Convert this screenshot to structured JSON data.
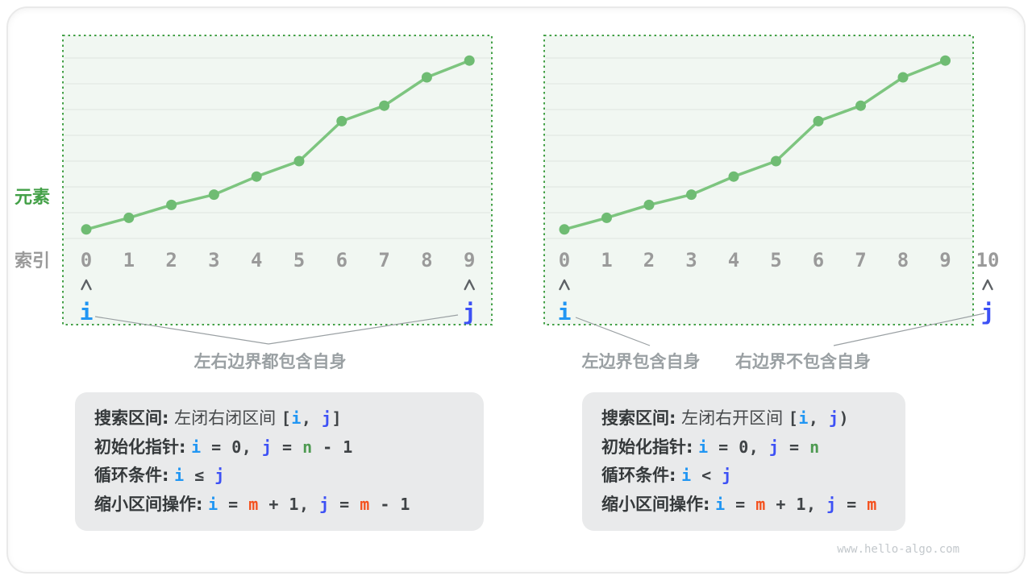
{
  "watermark": "www.hello-algo.com",
  "colors": {
    "border_green": "#43a047",
    "line_green": "#7dc57f",
    "dot_green": "#6fbc73",
    "box_bg": "#f1f7f2",
    "gridline": "#e0e5e0",
    "gray_label": "#9a9a9a",
    "annotation_gray": "#9aa0a3",
    "caret_gray": "#5d6165",
    "i_blue": "#2196f3",
    "j_indigo": "#3d51f5",
    "n_green": "#4e9a51",
    "m_orange": "#f4511e"
  },
  "axis": {
    "y_label": "元素",
    "x_label": "索引"
  },
  "panels": [
    {
      "name": "closed-interval",
      "index_labels": [
        "0",
        "1",
        "2",
        "3",
        "4",
        "5",
        "6",
        "7",
        "8",
        "9"
      ],
      "pointer_i": "i",
      "pointer_j": "j",
      "i_label_index": 0,
      "j_label_index": 9,
      "annotations": [
        {
          "text": "左右边界都包含自身"
        }
      ]
    },
    {
      "name": "left-closed-right-open-interval",
      "index_labels": [
        "0",
        "1",
        "2",
        "3",
        "4",
        "5",
        "6",
        "7",
        "8",
        "9",
        "10"
      ],
      "pointer_i": "i",
      "pointer_j": "j",
      "i_label_index": 0,
      "j_label_index": 10,
      "annotations": [
        {
          "text": "左边界包含自身"
        },
        {
          "text": "右边界不包含自身"
        }
      ]
    }
  ],
  "chart_data": [
    {
      "type": "line",
      "title": "",
      "x": [
        0,
        1,
        2,
        3,
        4,
        5,
        6,
        7,
        8,
        9
      ],
      "values": [
        0.35,
        0.8,
        1.3,
        1.7,
        2.4,
        3.0,
        4.55,
        5.15,
        6.25,
        6.9
      ],
      "xlabel": "索引",
      "ylabel": "元素",
      "grid": true,
      "legend": false,
      "note": "ascending sorted array, y in gridline units (no numeric axis labels shown)"
    },
    {
      "type": "line",
      "title": "",
      "x": [
        0,
        1,
        2,
        3,
        4,
        5,
        6,
        7,
        8,
        9
      ],
      "values": [
        0.35,
        0.8,
        1.3,
        1.7,
        2.4,
        3.0,
        4.55,
        5.15,
        6.25,
        6.9
      ],
      "xlabel": "",
      "ylabel": "",
      "grid": true,
      "legend": false,
      "note": "same ascending array; index 10 is outside the dotted interval box"
    }
  ],
  "info_boxes": [
    {
      "lines": [
        [
          {
            "t": "搜索区间:",
            "s": "label"
          },
          {
            "t": " 左闭右闭区间 ",
            "s": "plain"
          },
          {
            "t": "[",
            "s": "mono"
          },
          {
            "t": "i",
            "s": "i"
          },
          {
            "t": ", ",
            "s": "mono"
          },
          {
            "t": "j",
            "s": "j"
          },
          {
            "t": "]",
            "s": "mono"
          }
        ],
        [
          {
            "t": "初始化指针:",
            "s": "label"
          },
          {
            "t": " ",
            "s": "plain"
          },
          {
            "t": "i",
            "s": "i"
          },
          {
            "t": " = 0, ",
            "s": "mono"
          },
          {
            "t": "j",
            "s": "j"
          },
          {
            "t": " = ",
            "s": "mono"
          },
          {
            "t": "n",
            "s": "n"
          },
          {
            "t": " - 1",
            "s": "mono"
          }
        ],
        [
          {
            "t": "循环条件:",
            "s": "label"
          },
          {
            "t": " ",
            "s": "plain"
          },
          {
            "t": "i",
            "s": "i"
          },
          {
            "t": " ≤ ",
            "s": "mono"
          },
          {
            "t": "j",
            "s": "j"
          }
        ],
        [
          {
            "t": "缩小区间操作:",
            "s": "label"
          },
          {
            "t": " ",
            "s": "plain"
          },
          {
            "t": "i",
            "s": "i"
          },
          {
            "t": " = ",
            "s": "mono"
          },
          {
            "t": "m",
            "s": "m"
          },
          {
            "t": " + 1, ",
            "s": "mono"
          },
          {
            "t": "j",
            "s": "j"
          },
          {
            "t": " = ",
            "s": "mono"
          },
          {
            "t": "m",
            "s": "m"
          },
          {
            "t": " - 1",
            "s": "mono"
          }
        ]
      ]
    },
    {
      "lines": [
        [
          {
            "t": "搜索区间:",
            "s": "label"
          },
          {
            "t": " 左闭右开区间 ",
            "s": "plain"
          },
          {
            "t": "[",
            "s": "mono"
          },
          {
            "t": "i",
            "s": "i"
          },
          {
            "t": ", ",
            "s": "mono"
          },
          {
            "t": "j",
            "s": "j"
          },
          {
            "t": ")",
            "s": "mono"
          }
        ],
        [
          {
            "t": "初始化指针:",
            "s": "label"
          },
          {
            "t": " ",
            "s": "plain"
          },
          {
            "t": "i",
            "s": "i"
          },
          {
            "t": " = 0, ",
            "s": "mono"
          },
          {
            "t": "j",
            "s": "j"
          },
          {
            "t": " = ",
            "s": "mono"
          },
          {
            "t": "n",
            "s": "n"
          }
        ],
        [
          {
            "t": "循环条件:",
            "s": "label"
          },
          {
            "t": " ",
            "s": "plain"
          },
          {
            "t": "i",
            "s": "i"
          },
          {
            "t": " < ",
            "s": "mono"
          },
          {
            "t": "j",
            "s": "j"
          }
        ],
        [
          {
            "t": "缩小区间操作:",
            "s": "label"
          },
          {
            "t": " ",
            "s": "plain"
          },
          {
            "t": "i",
            "s": "i"
          },
          {
            "t": " = ",
            "s": "mono"
          },
          {
            "t": "m",
            "s": "m"
          },
          {
            "t": " + 1, ",
            "s": "mono"
          },
          {
            "t": "j",
            "s": "j"
          },
          {
            "t": " = ",
            "s": "mono"
          },
          {
            "t": "m",
            "s": "m"
          }
        ]
      ]
    }
  ]
}
